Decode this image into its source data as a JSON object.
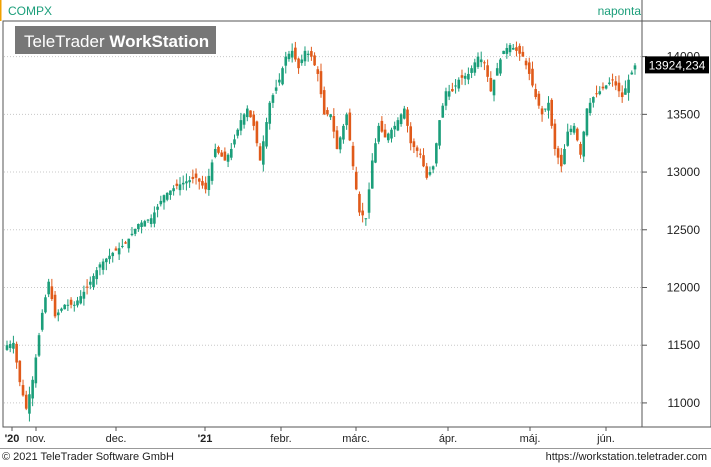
{
  "header": {
    "symbol": "COMPX",
    "interval": "naponta",
    "brand_light": "TeleTrader ",
    "brand_bold": "WorkStation"
  },
  "footer": {
    "copyright": "© 2021 TeleTrader Software GmbH",
    "url": "https://workstation.teletrader.com"
  },
  "colors": {
    "up": "#1b9e7a",
    "down": "#e05a1a",
    "grid": "#c8c8c8",
    "accent_bar": "#f0a000",
    "label_bg": "#000000"
  },
  "chart_data": {
    "type": "candlestick",
    "title": "COMPX",
    "period": "naponta",
    "last_value_label": "13924,234",
    "last_value": 13924.234,
    "y_axis": {
      "position": "right",
      "ylim": [
        10800,
        14300
      ],
      "ticks": [
        11000,
        11500,
        12000,
        12500,
        13000,
        13500,
        14000
      ],
      "tick_labels": [
        "11000",
        "11500",
        "12000",
        "12500",
        "13000",
        "13500",
        "14000"
      ]
    },
    "x_axis": {
      "labels": [
        "'20",
        "nov.",
        "dec.",
        "'21",
        "febr.",
        "márc.",
        "ápr.",
        "máj.",
        "jún."
      ]
    },
    "grid": true,
    "anchors": [
      {
        "i": 0,
        "v": 11500
      },
      {
        "i": 2,
        "v": 11520
      },
      {
        "i": 4,
        "v": 11180
      },
      {
        "i": 6,
        "v": 10950
      },
      {
        "i": 8,
        "v": 11200
      },
      {
        "i": 11,
        "v": 11780
      },
      {
        "i": 13,
        "v": 12050
      },
      {
        "i": 15,
        "v": 11750
      },
      {
        "i": 18,
        "v": 11850
      },
      {
        "i": 21,
        "v": 11850
      },
      {
        "i": 25,
        "v": 12000
      },
      {
        "i": 29,
        "v": 12200
      },
      {
        "i": 33,
        "v": 12300
      },
      {
        "i": 37,
        "v": 12380
      },
      {
        "i": 41,
        "v": 12550
      },
      {
        "i": 45,
        "v": 12600
      },
      {
        "i": 49,
        "v": 12800
      },
      {
        "i": 53,
        "v": 12880
      },
      {
        "i": 56,
        "v": 12920
      },
      {
        "i": 59,
        "v": 12950
      },
      {
        "i": 62,
        "v": 12850
      },
      {
        "i": 65,
        "v": 13200
      },
      {
        "i": 68,
        "v": 13100
      },
      {
        "i": 70,
        "v": 13200
      },
      {
        "i": 73,
        "v": 13450
      },
      {
        "i": 75,
        "v": 13550
      },
      {
        "i": 77,
        "v": 13400
      },
      {
        "i": 79,
        "v": 13100
      },
      {
        "i": 82,
        "v": 13600
      },
      {
        "i": 85,
        "v": 13800
      },
      {
        "i": 87,
        "v": 14000
      },
      {
        "i": 89,
        "v": 14050
      },
      {
        "i": 91,
        "v": 13900
      },
      {
        "i": 93,
        "v": 14050
      },
      {
        "i": 95,
        "v": 14000
      },
      {
        "i": 97,
        "v": 13850
      },
      {
        "i": 99,
        "v": 13500
      },
      {
        "i": 101,
        "v": 13500
      },
      {
        "i": 103,
        "v": 13200
      },
      {
        "i": 106,
        "v": 13500
      },
      {
        "i": 108,
        "v": 13050
      },
      {
        "i": 110,
        "v": 12650
      },
      {
        "i": 112,
        "v": 12600
      },
      {
        "i": 114,
        "v": 13100
      },
      {
        "i": 116,
        "v": 13400
      },
      {
        "i": 118,
        "v": 13300
      },
      {
        "i": 121,
        "v": 13400
      },
      {
        "i": 124,
        "v": 13550
      },
      {
        "i": 126,
        "v": 13250
      },
      {
        "i": 129,
        "v": 13150
      },
      {
        "i": 131,
        "v": 12950
      },
      {
        "i": 133,
        "v": 13050
      },
      {
        "i": 135,
        "v": 13450
      },
      {
        "i": 137,
        "v": 13700
      },
      {
        "i": 139,
        "v": 13700
      },
      {
        "i": 141,
        "v": 13800
      },
      {
        "i": 144,
        "v": 13850
      },
      {
        "i": 147,
        "v": 14000
      },
      {
        "i": 149,
        "v": 13950
      },
      {
        "i": 151,
        "v": 13700
      },
      {
        "i": 153,
        "v": 13900
      },
      {
        "i": 155,
        "v": 14050
      },
      {
        "i": 157,
        "v": 14100
      },
      {
        "i": 159,
        "v": 14050
      },
      {
        "i": 161,
        "v": 14000
      },
      {
        "i": 163,
        "v": 13850
      },
      {
        "i": 165,
        "v": 13650
      },
      {
        "i": 167,
        "v": 13500
      },
      {
        "i": 169,
        "v": 13600
      },
      {
        "i": 171,
        "v": 13200
      },
      {
        "i": 173,
        "v": 13050
      },
      {
        "i": 175,
        "v": 13350
      },
      {
        "i": 177,
        "v": 13400
      },
      {
        "i": 179,
        "v": 13150
      },
      {
        "i": 181,
        "v": 13550
      },
      {
        "i": 183,
        "v": 13650
      },
      {
        "i": 185,
        "v": 13700
      },
      {
        "i": 187,
        "v": 13750
      },
      {
        "i": 189,
        "v": 13800
      },
      {
        "i": 192,
        "v": 13650
      },
      {
        "i": 194,
        "v": 13800
      },
      {
        "i": 196,
        "v": 13924
      }
    ],
    "count": 197
  }
}
